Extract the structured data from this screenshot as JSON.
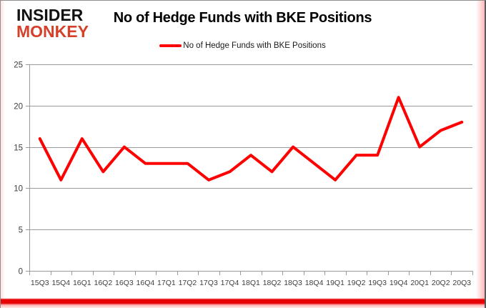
{
  "logo": {
    "line1": "INSIDER",
    "line2": "MONKEY",
    "accent_color": "#d5402b"
  },
  "header": {
    "title": "No of Hedge Funds with BKE Positions"
  },
  "legend": {
    "label": "No of Hedge Funds with BKE Positions",
    "marker_color": "#ff0000"
  },
  "chart_data": {
    "type": "line",
    "title": "No of Hedge Funds with BKE Positions",
    "categories": [
      "15Q3",
      "15Q4",
      "16Q1",
      "16Q2",
      "16Q3",
      "16Q4",
      "17Q1",
      "17Q2",
      "17Q3",
      "17Q4",
      "18Q1",
      "18Q2",
      "18Q3",
      "18Q4",
      "19Q1",
      "19Q2",
      "19Q3",
      "19Q4",
      "20Q1",
      "20Q2",
      "20Q3"
    ],
    "series": [
      {
        "name": "No of Hedge Funds with BKE Positions",
        "values": [
          16,
          11,
          16,
          12,
          15,
          13,
          13,
          13,
          11,
          12,
          14,
          12,
          15,
          13,
          11,
          14,
          14,
          21,
          15,
          17,
          18
        ]
      }
    ],
    "xlabel": "",
    "ylabel": "",
    "ylim": [
      0,
      25
    ],
    "yticks": [
      0,
      5,
      10,
      15,
      20,
      25
    ],
    "grid": "horizontal",
    "legend_position": "top",
    "line_color": "#ff0000",
    "line_width": 4,
    "gridline_color": "#9a9a9a",
    "axis_color": "#9a9a9a",
    "tick_label_color": "#3f3f3f"
  },
  "frame": {
    "bottom_bar_color": "#e60205",
    "glow_color": "#ff4646"
  }
}
